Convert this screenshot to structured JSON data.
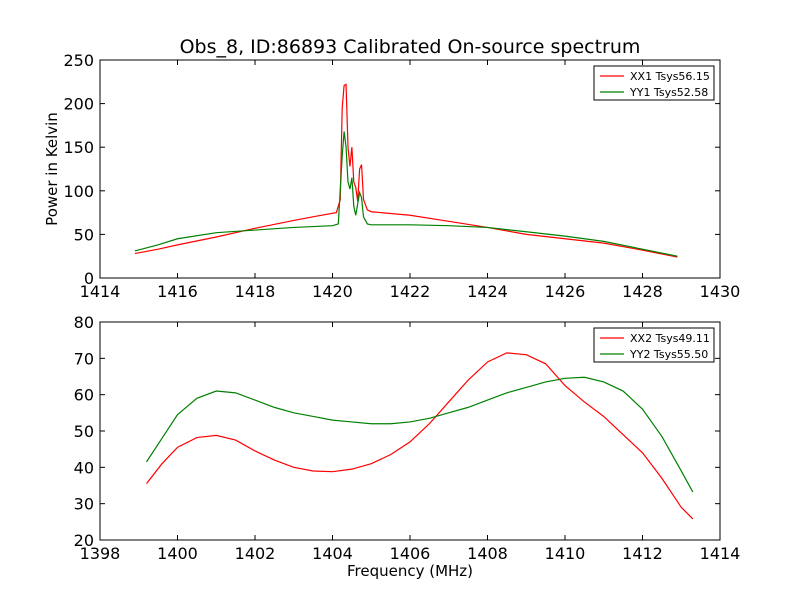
{
  "title": "Obs_8, ID:86893 Calibrated On-source spectrum",
  "chart_data": [
    {
      "type": "line",
      "xlabel": "",
      "ylabel": "Power in Kelvin",
      "xlim": [
        1414,
        1430
      ],
      "ylim": [
        0,
        250
      ],
      "xticks": [
        1414,
        1416,
        1418,
        1420,
        1422,
        1424,
        1426,
        1428,
        1430
      ],
      "yticks": [
        0,
        50,
        100,
        150,
        200,
        250
      ],
      "grid": false,
      "legend_position": "top-right",
      "series": [
        {
          "name": "XX1 Tsys56.15",
          "color": "#ff0000",
          "points": [
            [
              1414.9,
              28
            ],
            [
              1415.5,
              33
            ],
            [
              1416,
              38
            ],
            [
              1417,
              47
            ],
            [
              1418,
              57
            ],
            [
              1419,
              66
            ],
            [
              1419.6,
              71
            ],
            [
              1420.1,
              75
            ],
            [
              1420.2,
              90
            ],
            [
              1420.25,
              195
            ],
            [
              1420.3,
              221
            ],
            [
              1420.35,
              222
            ],
            [
              1420.4,
              150
            ],
            [
              1420.45,
              128
            ],
            [
              1420.5,
              150
            ],
            [
              1420.55,
              110
            ],
            [
              1420.6,
              104
            ],
            [
              1420.65,
              88
            ],
            [
              1420.7,
              125
            ],
            [
              1420.75,
              130
            ],
            [
              1420.8,
              90
            ],
            [
              1420.9,
              78
            ],
            [
              1421,
              76
            ],
            [
              1422,
              72
            ],
            [
              1423,
              65
            ],
            [
              1424,
              58
            ],
            [
              1425,
              50
            ],
            [
              1426,
              45
            ],
            [
              1427,
              40
            ],
            [
              1428,
              32
            ],
            [
              1428.9,
              24
            ]
          ]
        },
        {
          "name": "YY1 Tsys52.58",
          "color": "#008000",
          "points": [
            [
              1414.9,
              31
            ],
            [
              1415.5,
              38
            ],
            [
              1416,
              45
            ],
            [
              1417,
              52
            ],
            [
              1418,
              55
            ],
            [
              1419,
              58
            ],
            [
              1420,
              60
            ],
            [
              1420.15,
              62
            ],
            [
              1420.25,
              140
            ],
            [
              1420.3,
              168
            ],
            [
              1420.35,
              150
            ],
            [
              1420.4,
              110
            ],
            [
              1420.45,
              102
            ],
            [
              1420.5,
              115
            ],
            [
              1420.55,
              82
            ],
            [
              1420.6,
              72
            ],
            [
              1420.65,
              85
            ],
            [
              1420.7,
              98
            ],
            [
              1420.75,
              92
            ],
            [
              1420.8,
              70
            ],
            [
              1420.9,
              62
            ],
            [
              1421,
              61
            ],
            [
              1422,
              61
            ],
            [
              1423,
              60
            ],
            [
              1424,
              58
            ],
            [
              1425,
              53
            ],
            [
              1426,
              48
            ],
            [
              1427,
              42
            ],
            [
              1428,
              33
            ],
            [
              1428.9,
              25
            ]
          ]
        }
      ]
    },
    {
      "type": "line",
      "xlabel": "Frequency (MHz)",
      "ylabel": "",
      "xlim": [
        1398,
        1414
      ],
      "ylim": [
        20,
        80
      ],
      "xticks": [
        1398,
        1400,
        1402,
        1404,
        1406,
        1408,
        1410,
        1412,
        1414
      ],
      "yticks": [
        20,
        30,
        40,
        50,
        60,
        70,
        80
      ],
      "grid": false,
      "legend_position": "top-right",
      "series": [
        {
          "name": "XX2 Tsys49.11",
          "color": "#ff0000",
          "points": [
            [
              1399.2,
              35.5
            ],
            [
              1399.6,
              41
            ],
            [
              1400,
              45.5
            ],
            [
              1400.5,
              48.2
            ],
            [
              1401,
              48.8
            ],
            [
              1401.5,
              47.5
            ],
            [
              1402,
              44.5
            ],
            [
              1402.5,
              42
            ],
            [
              1403,
              40
            ],
            [
              1403.5,
              39
            ],
            [
              1404,
              38.8
            ],
            [
              1404.5,
              39.5
            ],
            [
              1405,
              41
            ],
            [
              1405.5,
              43.5
            ],
            [
              1406,
              47
            ],
            [
              1406.5,
              52
            ],
            [
              1407,
              58
            ],
            [
              1407.5,
              64
            ],
            [
              1408,
              69
            ],
            [
              1408.5,
              71.5
            ],
            [
              1409,
              71
            ],
            [
              1409.5,
              68.5
            ],
            [
              1410,
              62.5
            ],
            [
              1410.5,
              58
            ],
            [
              1411,
              54
            ],
            [
              1411.5,
              49
            ],
            [
              1412,
              44
            ],
            [
              1412.5,
              37
            ],
            [
              1413,
              29
            ],
            [
              1413.3,
              25.8
            ]
          ]
        },
        {
          "name": "YY2 Tsys55.50",
          "color": "#008000",
          "points": [
            [
              1399.2,
              41.5
            ],
            [
              1399.6,
              48
            ],
            [
              1400,
              54.5
            ],
            [
              1400.5,
              59
            ],
            [
              1401,
              61
            ],
            [
              1401.5,
              60.5
            ],
            [
              1402,
              58.5
            ],
            [
              1402.5,
              56.5
            ],
            [
              1403,
              55
            ],
            [
              1403.5,
              54
            ],
            [
              1404,
              53
            ],
            [
              1404.5,
              52.5
            ],
            [
              1405,
              52
            ],
            [
              1405.5,
              52
            ],
            [
              1406,
              52.5
            ],
            [
              1406.5,
              53.5
            ],
            [
              1407,
              55
            ],
            [
              1407.5,
              56.5
            ],
            [
              1408,
              58.5
            ],
            [
              1408.5,
              60.5
            ],
            [
              1409,
              62
            ],
            [
              1409.5,
              63.5
            ],
            [
              1410,
              64.5
            ],
            [
              1410.5,
              64.8
            ],
            [
              1411,
              63.5
            ],
            [
              1411.5,
              61
            ],
            [
              1412,
              56
            ],
            [
              1412.5,
              48.5
            ],
            [
              1413,
              39
            ],
            [
              1413.3,
              33.2
            ]
          ]
        }
      ]
    }
  ]
}
